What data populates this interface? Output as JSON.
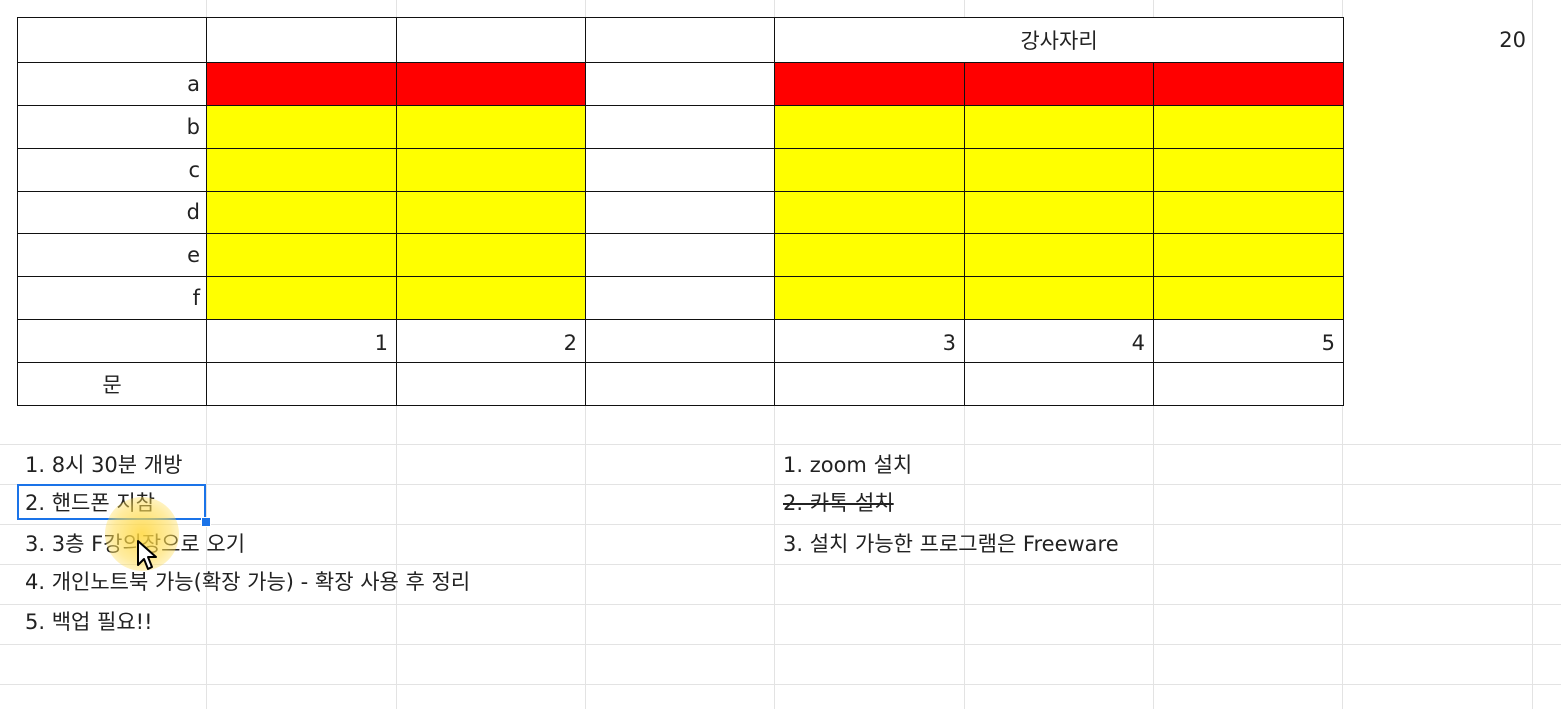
{
  "sheet": {
    "header_label": "강사자리",
    "count_value": "20",
    "row_labels": [
      "a",
      "b",
      "c",
      "d",
      "e",
      "f"
    ],
    "column_numbers": [
      "1",
      "2",
      "3",
      "4",
      "5"
    ],
    "bottom_label": "문",
    "colors": {
      "front_row": "#ff0000",
      "seats": "#ffff00",
      "selection": "#1a73e8"
    }
  },
  "notes_left": [
    "1. 8시 30분 개방",
    "2. 핸드폰 지참",
    "3. 3층 F강의장으로 오기",
    "4. 개인노트북 가능(확장 가능) - 확장 사용 후 정리",
    "5. 백업 필요!!"
  ],
  "notes_right": [
    "1. zoom 설치",
    "2. 카톡 설치",
    "3. 설치 가능한 프로그램은 Freeware"
  ],
  "pointer": {
    "icon": "mouse-pointer-icon"
  }
}
